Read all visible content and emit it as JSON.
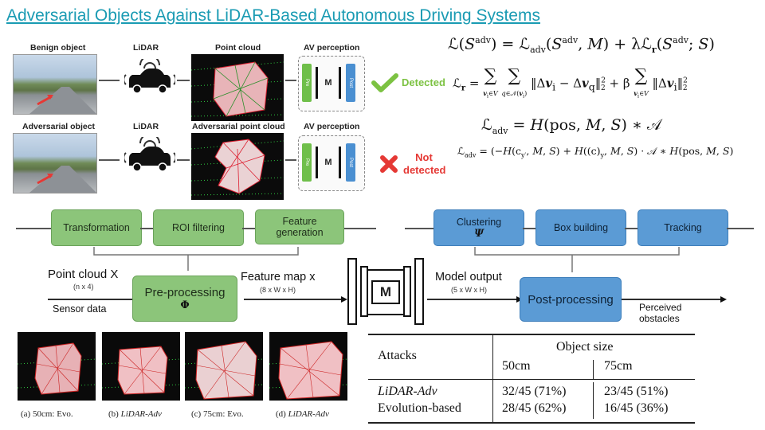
{
  "title": "Adversarial Objects Against LiDAR-Based Autonomous Driving Systems",
  "figure_top": {
    "row1": {
      "benign_label": "Benign object",
      "lidar_label": "LiDAR",
      "pc_label": "Point cloud",
      "percep_label": "AV perception",
      "result": "Detected"
    },
    "row2": {
      "adv_label": "Adversarial object",
      "lidar_label": "LiDAR",
      "pc_label": "Adversarial point cloud",
      "percep_label": "AV perception",
      "result_line1": "Not",
      "result_line2": "detected"
    },
    "pre_box": "Pre",
    "post_box": "Post",
    "model_letter": "M",
    "colors": {
      "detected": "#7cc242",
      "not_detected": "#e53935",
      "pre": "#6fbf4a",
      "post": "#4a8fd1"
    }
  },
  "equations": {
    "eq1": "ℒ(S^adv) = ℒ_adv(S^adv, M) + λℒ_r(S^adv; S)",
    "eq2": "ℒ_r = Σ_{v_i∈V} Σ_{q∈𝒩(v_i)} ‖Δv_i − Δv_q‖²₂ + β Σ_{v_i∈V} ‖Δv_i‖²₂",
    "eq3": "ℒ_adv = H(pos, M, S) ∗ 𝒜",
    "eq4": "ℒ_adv = (−H(c_y', M, S) + H((c)_y, M, S) · 𝒜 ∗ H(pos, M, S)"
  },
  "pipeline": {
    "pre_stages": [
      "Transformation",
      "ROI filtering",
      "Feature generation"
    ],
    "post_stages": [
      "Clustering",
      "Box building",
      "Tracking"
    ],
    "clustering_symbol": "Ψ",
    "point_cloud": "Point cloud X",
    "point_cloud_dim": "(n x 4)",
    "sensor_data": "Sensor data",
    "preprocessing": "Pre-processing",
    "pre_symbol": "Φ",
    "feature_map": "Feature map x",
    "feature_dim": "(8 x W x H)",
    "model_letter": "M",
    "model_output": "Model output",
    "model_dim": "(5 x W x H)",
    "postprocessing": "Post-processing",
    "perceived1": "Perceived",
    "perceived2": "obstacles"
  },
  "thumbnails": [
    {
      "label": "(a) 50cm: Evo.",
      "italic": ""
    },
    {
      "label": "(b) ",
      "italic": "LiDAR-Adv"
    },
    {
      "label": "(c) 75cm: Evo.",
      "italic": ""
    },
    {
      "label": "(d) ",
      "italic": "LiDAR-Adv"
    }
  ],
  "table": {
    "header_attacks": "Attacks",
    "header_size": "Object size",
    "col1": "50cm",
    "col2": "75cm",
    "rows": [
      {
        "name": "LiDAR-Adv",
        "c1": "32/45 (71%)",
        "c2": "23/45 (51%)"
      },
      {
        "name": "Evolution-based",
        "c1": "28/45 (62%)",
        "c2": "16/45 (36%)"
      }
    ]
  }
}
